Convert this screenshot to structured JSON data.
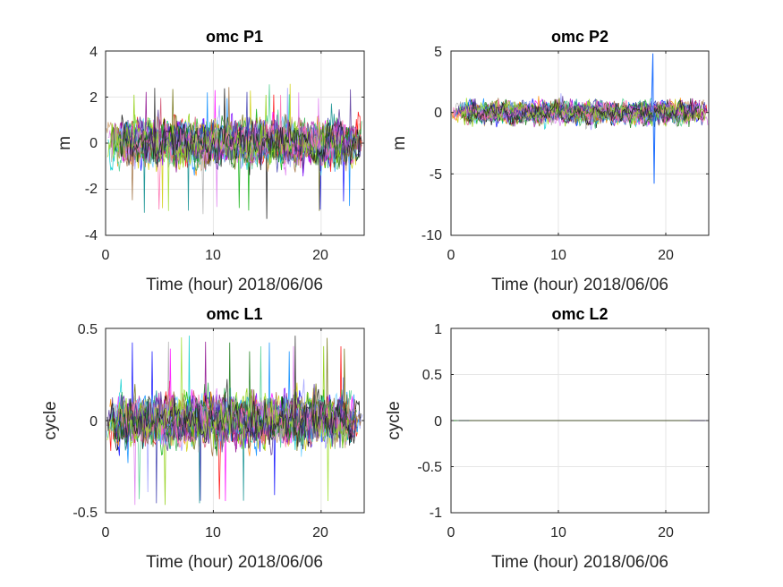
{
  "chart_data": [
    {
      "type": "line",
      "title": "omc P1",
      "xlabel": "Time (hour)  2018/06/06",
      "ylabel": "m",
      "xlim": [
        0,
        24
      ],
      "ylim": [
        -4,
        4
      ],
      "xticks": [
        "0",
        "10",
        "20"
      ],
      "yticks": [
        "4",
        "2",
        "0",
        "-2",
        "-4"
      ],
      "grid": true,
      "series_count": 30,
      "noise_amplitude_approx": 1.1,
      "extremes_approx": [
        -3.3,
        2.6
      ]
    },
    {
      "type": "line",
      "title": "omc P2",
      "xlabel": "Time (hour)  2018/06/06",
      "ylabel": "m",
      "xlim": [
        0,
        24
      ],
      "ylim": [
        -10,
        5
      ],
      "xticks": [
        "0",
        "10",
        "20"
      ],
      "yticks": [
        "5",
        "0",
        "-5",
        "-10"
      ],
      "grid": true,
      "series_count": 30,
      "noise_amplitude_approx": 1.0,
      "spike": {
        "x": 18.8,
        "max": 4.8,
        "min": -5.8
      }
    },
    {
      "type": "line",
      "title": "omc L1",
      "xlabel": "Time (hour)  2018/06/06",
      "ylabel": "cycle",
      "xlim": [
        0,
        24
      ],
      "ylim": [
        -0.5,
        0.5
      ],
      "xticks": [
        "0",
        "10",
        "20"
      ],
      "yticks": [
        "0.5",
        "0",
        "-0.5"
      ],
      "grid": true,
      "series_count": 30,
      "noise_amplitude_approx": 0.15,
      "extremes_approx": [
        -0.49,
        0.5
      ]
    },
    {
      "type": "line",
      "title": "omc L2",
      "xlabel": "Time (hour)  2018/06/06",
      "ylabel": "cycle",
      "xlim": [
        0,
        24
      ],
      "ylim": [
        -1,
        1
      ],
      "xticks": [
        "0",
        "10",
        "20"
      ],
      "yticks": [
        "1",
        "0.5",
        "0",
        "-0.5",
        "-1"
      ],
      "grid": true,
      "series_count": 30,
      "constant_value": 0
    }
  ],
  "colors": {
    "axis": "#262626",
    "grid": "#e6e6e6",
    "series_palette": [
      "#0000ff",
      "#ff0000",
      "#00aa00",
      "#ff00ff",
      "#00cccc",
      "#cccc00",
      "#000000",
      "#7b00ff",
      "#ff8800",
      "#008888",
      "#880088",
      "#88cc00",
      "#0088ff",
      "#cc4466",
      "#44cc88",
      "#666600",
      "#9999ff",
      "#cc9966",
      "#22aa44",
      "#aa22aa",
      "#66ccff",
      "#996633",
      "#3333aa",
      "#aaaaaa",
      "#dd77ee",
      "#117711",
      "#ff66aa",
      "#553399",
      "#99dd22",
      "#1f1f1f"
    ]
  }
}
